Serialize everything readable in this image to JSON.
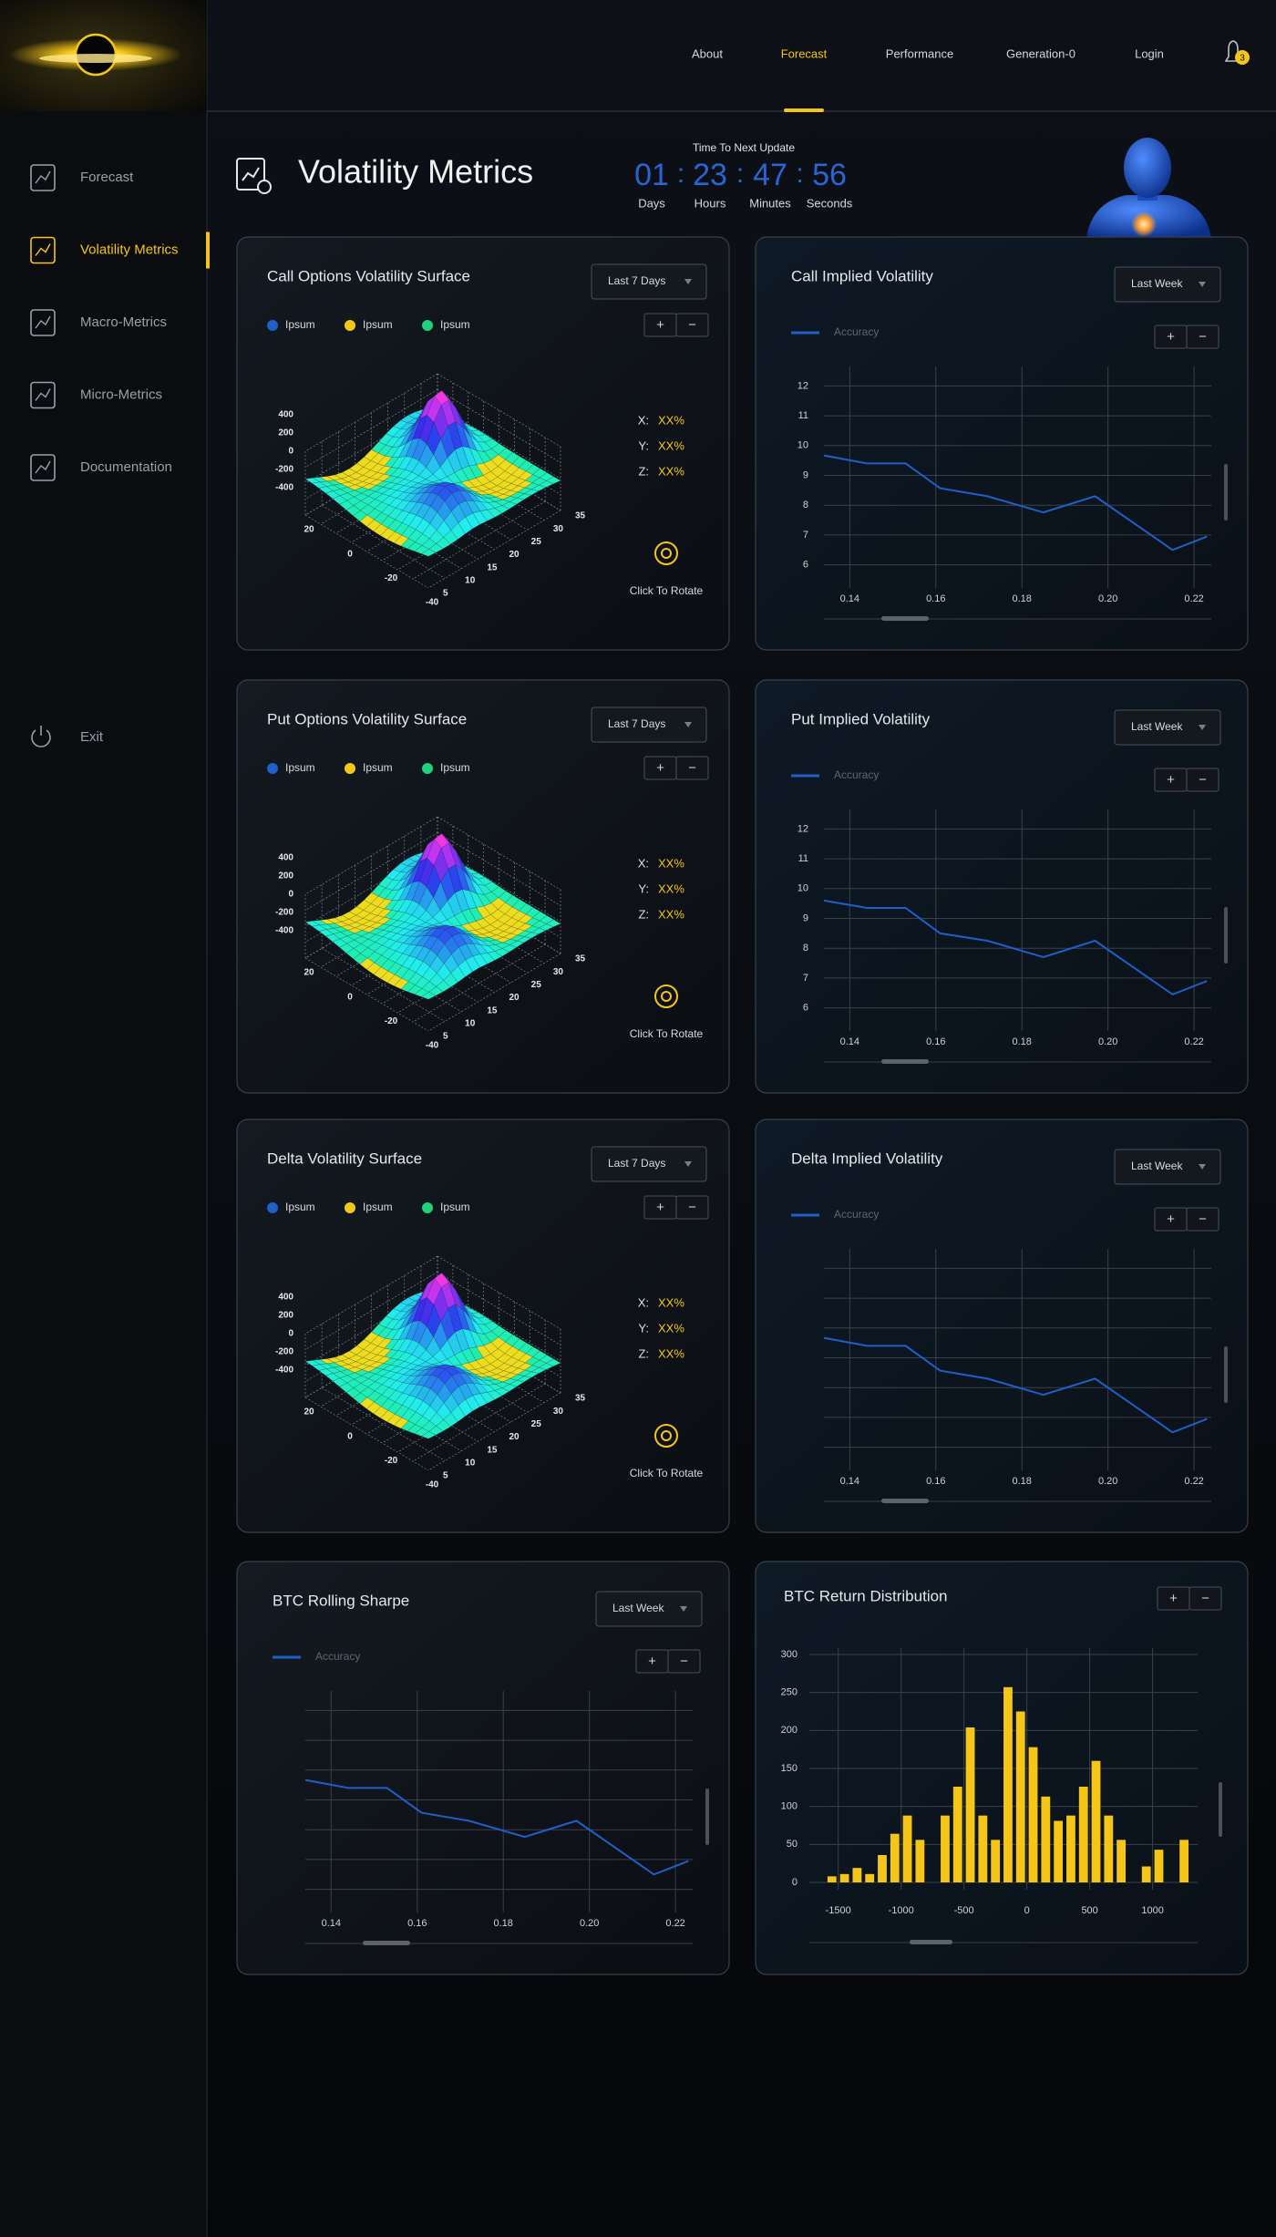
{
  "sidebar": {
    "items": [
      {
        "label": "Forecast",
        "active": false
      },
      {
        "label": "Volatility Metrics",
        "active": true
      },
      {
        "label": "Macro-Metrics",
        "active": false
      },
      {
        "label": "Micro-Metrics",
        "active": false
      },
      {
        "label": "Documentation",
        "active": false
      }
    ],
    "exit": "Exit"
  },
  "nav": {
    "items": [
      {
        "label": "About",
        "active": false
      },
      {
        "label": "Forecast",
        "active": true
      },
      {
        "label": "Performance",
        "active": false
      },
      {
        "label": "Generation-0",
        "active": false
      },
      {
        "label": "Login",
        "active": false
      }
    ],
    "notifications": 3
  },
  "header": {
    "title": "Volatility Metrics",
    "countdown": {
      "caption": "Time To Next Update",
      "separator": ":",
      "units": [
        {
          "value": "01",
          "label": "Days"
        },
        {
          "value": "23",
          "label": "Hours"
        },
        {
          "value": "47",
          "label": "Minutes"
        },
        {
          "value": "56",
          "label": "Seconds"
        }
      ]
    }
  },
  "chart_data": [
    {
      "type": "surface",
      "title": "Call Options Volatility Surface",
      "dropdown": "Last 7 Days",
      "zoom_in": "+",
      "zoom_out": "−",
      "series": [
        {
          "name": "Ipsum",
          "color": "#1f5fc8"
        },
        {
          "name": "Ipsum",
          "color": "#f5c518"
        },
        {
          "name": "Ipsum",
          "color": "#1fd17a"
        }
      ],
      "xlim": [
        -40,
        20
      ],
      "xticks": [
        20,
        0,
        -20,
        -40
      ],
      "ylim": [
        5,
        35
      ],
      "yticks": [
        35,
        30,
        25,
        20,
        15,
        10,
        5
      ],
      "zlim": [
        -400,
        400
      ],
      "zticks": [
        400,
        200,
        0,
        -200,
        -400
      ],
      "readouts": [
        {
          "label": "X:",
          "value": "XX%"
        },
        {
          "label": "Y:",
          "value": "XX%"
        },
        {
          "label": "Z:",
          "value": "XX%"
        }
      ],
      "action": "Click To Rotate"
    },
    {
      "type": "line",
      "title": "Call Implied Volatility",
      "dropdown": "Last Week",
      "zoom_in": "+",
      "zoom_out": "−",
      "x": [
        0.134,
        0.144,
        0.153,
        0.161,
        0.172,
        0.185,
        0.197,
        0.215,
        0.223
      ],
      "series": [
        {
          "name": "Accuracy",
          "color": "#1f5fc8",
          "values": [
            9.67,
            9.4,
            9.4,
            8.57,
            8.3,
            7.76,
            8.3,
            6.5,
            6.95
          ]
        }
      ],
      "xlim": [
        0.134,
        0.224
      ],
      "xticks": [
        0.14,
        0.16,
        0.18,
        {
          "value": 0.2,
          "label": "0.20"
        },
        0.22
      ],
      "ylim": [
        5.5,
        12.5
      ],
      "yticks": [
        6,
        7,
        8,
        9,
        10,
        11,
        12
      ],
      "ytick_labels": true,
      "grid": true
    },
    {
      "type": "surface",
      "title": "Put Options Volatility Surface",
      "dropdown": "Last 7 Days",
      "zoom_in": "+",
      "zoom_out": "−",
      "series": [
        {
          "name": "Ipsum",
          "color": "#1f5fc8"
        },
        {
          "name": "Ipsum",
          "color": "#f5c518"
        },
        {
          "name": "Ipsum",
          "color": "#1fd17a"
        }
      ],
      "xlim": [
        -40,
        20
      ],
      "xticks": [
        20,
        0,
        -20,
        -40
      ],
      "ylim": [
        5,
        35
      ],
      "yticks": [
        35,
        30,
        25,
        20,
        15,
        10,
        5
      ],
      "zlim": [
        -400,
        400
      ],
      "zticks": [
        400,
        200,
        0,
        -200,
        -400
      ],
      "readouts": [
        {
          "label": "X:",
          "value": "XX%"
        },
        {
          "label": "Y:",
          "value": "XX%"
        },
        {
          "label": "Z:",
          "value": "XX%"
        }
      ],
      "action": "Click To Rotate"
    },
    {
      "type": "line",
      "title": "Put Implied Volatility",
      "dropdown": "Last Week",
      "zoom_in": "+",
      "zoom_out": "−",
      "x": [
        0.134,
        0.144,
        0.153,
        0.161,
        0.172,
        0.185,
        0.197,
        0.215,
        0.223
      ],
      "series": [
        {
          "name": "Accuracy",
          "color": "#1f5fc8",
          "values": [
            9.6,
            9.35,
            9.35,
            8.5,
            8.25,
            7.7,
            8.25,
            6.45,
            6.9
          ]
        }
      ],
      "xlim": [
        0.134,
        0.224
      ],
      "xticks": [
        0.14,
        0.16,
        0.18,
        {
          "value": 0.2,
          "label": "0.20"
        },
        0.22
      ],
      "ylim": [
        5.5,
        12.5
      ],
      "yticks": [
        6,
        7,
        8,
        9,
        10,
        11,
        12
      ],
      "ytick_labels": true,
      "grid": true
    },
    {
      "type": "surface",
      "title": "Delta Volatility Surface",
      "dropdown": "Last 7 Days",
      "zoom_in": "+",
      "zoom_out": "−",
      "series": [
        {
          "name": "Ipsum",
          "color": "#1f5fc8"
        },
        {
          "name": "Ipsum",
          "color": "#f5c518"
        },
        {
          "name": "Ipsum",
          "color": "#1fd17a"
        }
      ],
      "xlim": [
        -40,
        20
      ],
      "xticks": [
        20,
        0,
        -20,
        -40
      ],
      "ylim": [
        5,
        35
      ],
      "yticks": [
        35,
        30,
        25,
        20,
        15,
        10,
        5
      ],
      "zlim": [
        -400,
        400
      ],
      "zticks": [
        400,
        200,
        0,
        -200,
        -400
      ],
      "readouts": [
        {
          "label": "X:",
          "value": "XX%"
        },
        {
          "label": "Y:",
          "value": "XX%"
        },
        {
          "label": "Z:",
          "value": "XX%"
        }
      ],
      "action": "Click To Rotate"
    },
    {
      "type": "line",
      "title": "Delta Implied Volatility",
      "dropdown": "Last Week",
      "zoom_in": "+",
      "zoom_out": "−",
      "x": [
        0.134,
        0.144,
        0.153,
        0.161,
        0.172,
        0.185,
        0.197,
        0.215,
        0.223
      ],
      "series": [
        {
          "name": "Accuracy",
          "color": "#1f5fc8",
          "values": [
            9.67,
            9.4,
            9.4,
            8.57,
            8.3,
            7.76,
            8.3,
            6.5,
            6.95
          ]
        }
      ],
      "xlim": [
        0.134,
        0.224
      ],
      "xticks": [
        0.14,
        0.16,
        0.18,
        {
          "value": 0.2,
          "label": "0.20"
        },
        0.22
      ],
      "ylim": [
        5.5,
        12.5
      ],
      "yticks": [
        6,
        7,
        8,
        9,
        10,
        11,
        12
      ],
      "ytick_labels": false,
      "grid": true
    },
    {
      "type": "line",
      "title": "BTC Rolling Sharpe",
      "dropdown": "Last Week",
      "zoom_in": "+",
      "zoom_out": "−",
      "x": [
        0.134,
        0.144,
        0.153,
        0.161,
        0.172,
        0.185,
        0.197,
        0.215,
        0.223
      ],
      "series": [
        {
          "name": "Accuracy",
          "color": "#1f5fc8",
          "values": [
            9.67,
            9.4,
            9.4,
            8.57,
            8.3,
            7.76,
            8.3,
            6.5,
            6.95
          ]
        }
      ],
      "xlim": [
        0.134,
        0.224
      ],
      "xticks": [
        0.14,
        0.16,
        0.18,
        {
          "value": 0.2,
          "label": "0.20"
        },
        0.22
      ],
      "ylim": [
        5.5,
        12.5
      ],
      "yticks": [
        6,
        7,
        8,
        9,
        10,
        11,
        12
      ],
      "ytick_labels": false,
      "grid": true
    },
    {
      "type": "histogram",
      "title": "BTC Return Distribution",
      "zoom_in": "+",
      "zoom_out": "−",
      "color": "#f5c518",
      "bins": [
        -1600,
        -1500,
        -1400,
        -1300,
        -1200,
        -1100,
        -1000,
        -900,
        -800,
        -700,
        -600,
        -500,
        -400,
        -300,
        -200,
        -100,
        0,
        100,
        200,
        300,
        400,
        500,
        600,
        700,
        800,
        900,
        1000,
        1100,
        1200,
        1300
      ],
      "counts": [
        8,
        11,
        19,
        11,
        36,
        64,
        88,
        56,
        0,
        88,
        126,
        204,
        88,
        56,
        257,
        225,
        178,
        113,
        81,
        88,
        126,
        160,
        88,
        56,
        0,
        21,
        43,
        0,
        56
      ],
      "xlim": [
        -1650,
        1300
      ],
      "xticks": [
        -1500,
        -1000,
        -500,
        0,
        500,
        1000
      ],
      "ylim": [
        0,
        300
      ],
      "yticks": [
        0,
        50,
        100,
        150,
        200,
        250,
        300
      ],
      "grid": true
    }
  ]
}
